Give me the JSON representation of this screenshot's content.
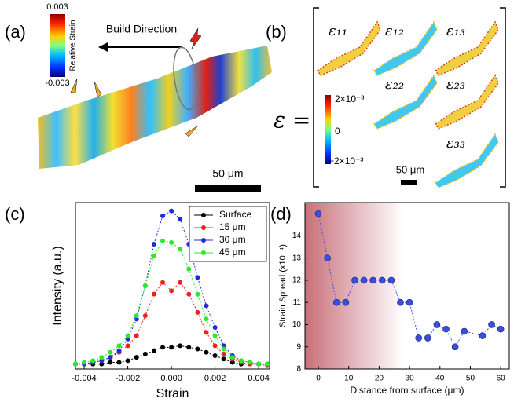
{
  "figure": {
    "panel_a": {
      "label": "(a)",
      "colorbar": {
        "title": "Relative Strain",
        "max": "0.003",
        "min": "-0.003"
      },
      "annotation": "Build Direction",
      "scale_bar": "50 μm"
    },
    "panel_b": {
      "label": "(b)",
      "lhs": "ε =",
      "components": [
        "ε₁₁",
        "ε₁₂",
        "ε₁₃",
        "ε₂₂",
        "ε₂₃",
        "ε₃₃"
      ],
      "colorbar": {
        "max": "2×10⁻³",
        "mid": "0",
        "min": "−2×10⁻³"
      },
      "scale_bar": "50 μm"
    }
  },
  "chart_data": [
    {
      "type": "line",
      "label": "(c)",
      "xlabel": "Strain",
      "ylabel": "Intensity (a.u.)",
      "x": [
        -0.0044,
        -0.004,
        -0.0036,
        -0.0032,
        -0.0028,
        -0.0024,
        -0.002,
        -0.0016,
        -0.0012,
        -0.0008,
        -0.0004,
        0,
        0.0004,
        0.0008,
        0.0012,
        0.0016,
        0.002,
        0.0024,
        0.0028,
        0.0032,
        0.0036,
        0.004,
        0.0044
      ],
      "series": [
        {
          "name": "Surface",
          "color": "#000000",
          "values": [
            0.03,
            0.03,
            0.03,
            0.03,
            0.04,
            0.04,
            0.05,
            0.07,
            0.09,
            0.11,
            0.13,
            0.13,
            0.14,
            0.13,
            0.12,
            0.1,
            0.08,
            0.06,
            0.04,
            0.03,
            0.03,
            0.03,
            0.03
          ]
        },
        {
          "name": "15 μm",
          "color": "#e8231f",
          "values": [
            0.03,
            0.03,
            0.04,
            0.05,
            0.07,
            0.1,
            0.14,
            0.2,
            0.32,
            0.45,
            0.52,
            0.47,
            0.52,
            0.45,
            0.34,
            0.22,
            0.14,
            0.09,
            0.06,
            0.04,
            0.03,
            0.03,
            0.02
          ]
        },
        {
          "name": "30 μm",
          "color": "#1f2bd6",
          "values": [
            0.03,
            0.03,
            0.04,
            0.05,
            0.07,
            0.11,
            0.18,
            0.3,
            0.5,
            0.75,
            0.92,
            0.95,
            0.9,
            0.75,
            0.55,
            0.38,
            0.25,
            0.14,
            0.08,
            0.05,
            0.04,
            0.03,
            0.03
          ]
        },
        {
          "name": "45 μm",
          "color": "#2ee82a",
          "values": [
            0.03,
            0.04,
            0.05,
            0.07,
            0.1,
            0.14,
            0.2,
            0.32,
            0.5,
            0.68,
            0.77,
            0.76,
            0.72,
            0.6,
            0.45,
            0.3,
            0.2,
            0.12,
            0.07,
            0.05,
            0.04,
            0.03,
            0.03
          ]
        }
      ],
      "xlim": [
        -0.0044,
        0.0045
      ],
      "ylim": [
        0,
        1
      ],
      "xticks": [
        -0.004,
        -0.002,
        {
          "value": 0,
          "label": "0.000"
        },
        0.002,
        0.004
      ],
      "yticks": [],
      "legend": "upper right"
    },
    {
      "type": "line",
      "label": "(d)",
      "xlabel": "Distance from surface (μm)",
      "ylabel": "Strain Spread (x10⁻⁴)",
      "x": [
        0,
        3,
        6,
        9,
        12,
        15,
        18,
        21,
        24,
        27,
        30,
        33,
        36,
        39,
        42,
        45,
        48,
        54,
        57,
        60
      ],
      "series": [
        {
          "color": "#3a4fd8",
          "values": [
            15,
            13,
            11,
            11,
            12,
            12,
            12,
            12,
            12,
            11,
            11,
            9.4,
            9.4,
            10,
            9.8,
            9,
            9.7,
            9.5,
            10,
            9.8
          ]
        }
      ],
      "xlim": [
        -4.4,
        62.8
      ],
      "ylim": [
        8,
        15.5
      ],
      "xticks": [
        0,
        10,
        20,
        30,
        40,
        50,
        60
      ],
      "yticks": [
        8,
        9,
        10,
        11,
        12,
        13,
        14
      ],
      "shaded_region": [
        -4.4,
        28
      ],
      "shade_color": "#c9707a"
    }
  ]
}
